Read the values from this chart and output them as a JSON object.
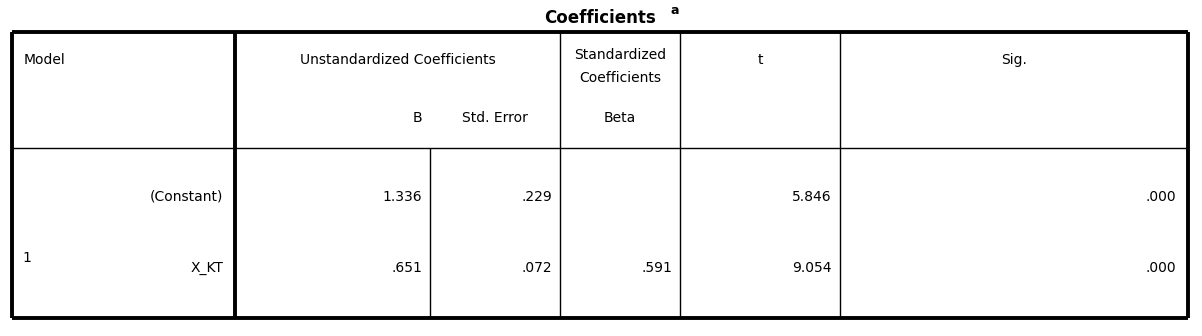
{
  "title": "Coefficients",
  "title_superscript": "a",
  "background_color": "#ffffff",
  "col_headers": {
    "model": "Model",
    "unstd_coef": "Unstandardized Coefficients",
    "std_coef_line1": "Standardized",
    "std_coef_line2": "Coefficients",
    "t": "t",
    "sig": "Sig."
  },
  "sub_headers": {
    "B": "B",
    "std_error": "Std. Error",
    "beta": "Beta"
  },
  "rows": [
    {
      "model_num": "1",
      "sub_model": "(Constant)",
      "B": "1.336",
      "std_error": ".229",
      "beta": "",
      "t": "5.846",
      "sig": ".000"
    },
    {
      "model_num": "",
      "sub_model": "X_KT",
      "B": ".651",
      "std_error": ".072",
      "beta": ".591",
      "t": "9.054",
      "sig": ".000"
    }
  ],
  "font_size_title": 12,
  "font_size_header": 10,
  "font_size_data": 10,
  "thick_lw": 2.8,
  "thin_lw": 1.0
}
